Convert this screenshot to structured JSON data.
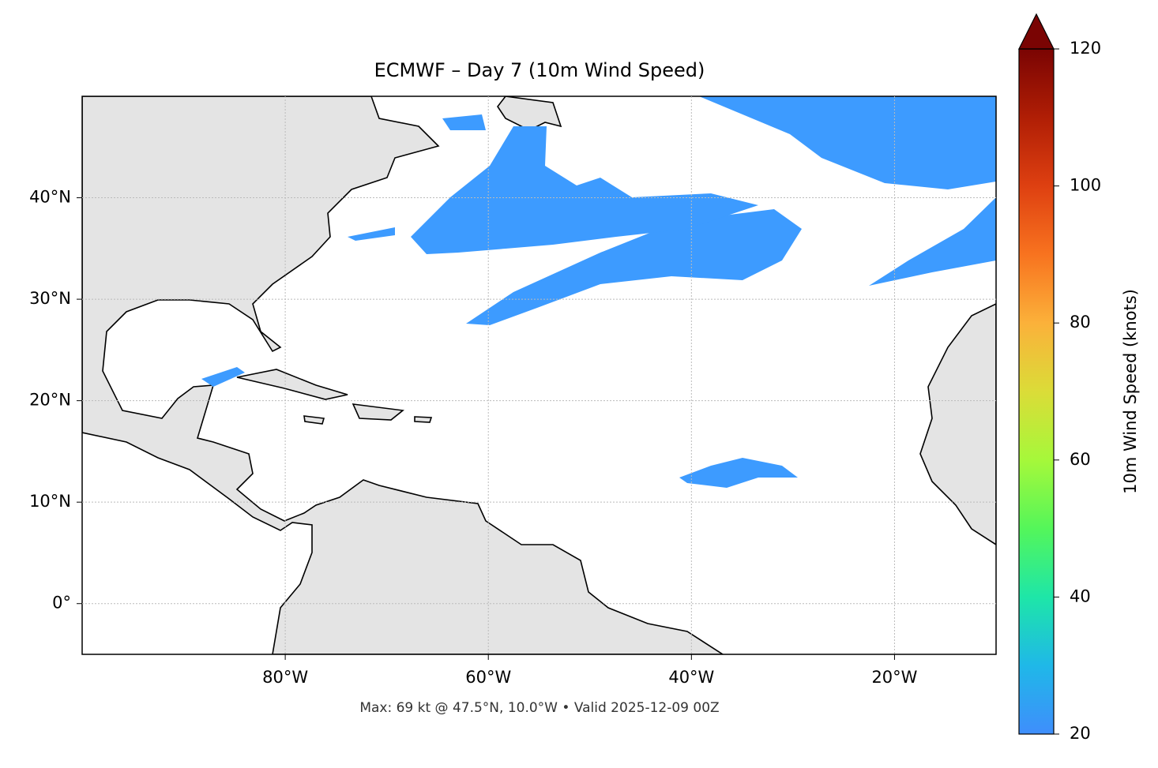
{
  "title": "ECMWF – Day 7 (10m Wind Speed)",
  "footer": "Max: 69 kt @ 47.5°N, 10.0°W • Valid 2025-12-09 00Z",
  "map": {
    "xlim": [
      -100,
      -10
    ],
    "ylim": [
      -5,
      50
    ],
    "xticks": [
      {
        "value": -80,
        "label": "80°W"
      },
      {
        "value": -60,
        "label": "60°W"
      },
      {
        "value": -40,
        "label": "40°W"
      },
      {
        "value": -20,
        "label": "20°W"
      }
    ],
    "yticks": [
      {
        "value": 0,
        "label": "0°"
      },
      {
        "value": 10,
        "label": "10°N"
      },
      {
        "value": 20,
        "label": "20°N"
      },
      {
        "value": 30,
        "label": "30°N"
      },
      {
        "value": 40,
        "label": "40°N"
      }
    ],
    "grid": true
  },
  "colorbar": {
    "label": "10m Wind Speed (knots)",
    "lim": [
      20,
      120
    ],
    "ticks": [
      20,
      40,
      60,
      80,
      100,
      120
    ]
  }
}
